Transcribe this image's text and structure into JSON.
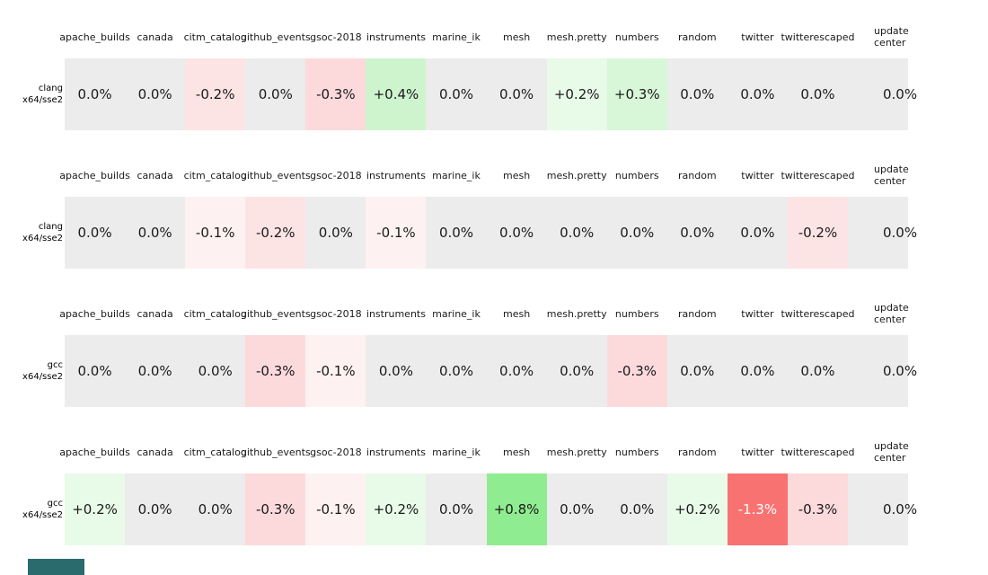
{
  "figure": {
    "columns": [
      "apache_builds",
      "canada",
      "citm_catalog",
      "github_events",
      "gsoc-2018",
      "instruments",
      "marine_ik",
      "mesh",
      "mesh.pretty",
      "numbers",
      "random",
      "twitter",
      "twitterescaped"
    ],
    "last_column_lines": [
      "update",
      "center"
    ],
    "groups": [
      {
        "label_lines": [
          "clang",
          "x64/sse2"
        ],
        "values": [
          "0.0%",
          "0.0%",
          "-0.2%",
          "0.0%",
          "-0.3%",
          "+0.4%",
          "0.0%",
          "0.0%",
          "+0.2%",
          "+0.3%",
          "0.0%",
          "0.0%",
          "0.0%",
          "0.0%"
        ]
      },
      {
        "label_lines": [
          "clang",
          "x64/sse2"
        ],
        "values": [
          "0.0%",
          "0.0%",
          "-0.1%",
          "-0.2%",
          "0.0%",
          "-0.1%",
          "0.0%",
          "0.0%",
          "0.0%",
          "0.0%",
          "0.0%",
          "0.0%",
          "-0.2%",
          "0.0%"
        ]
      },
      {
        "label_lines": [
          "gcc",
          "x64/sse2"
        ],
        "values": [
          "0.0%",
          "0.0%",
          "0.0%",
          "-0.3%",
          "-0.1%",
          "0.0%",
          "0.0%",
          "0.0%",
          "0.0%",
          "-0.3%",
          "0.0%",
          "0.0%",
          "0.0%",
          "0.0%"
        ]
      },
      {
        "label_lines": [
          "gcc",
          "x64/sse2"
        ],
        "values": [
          "+0.2%",
          "0.0%",
          "0.0%",
          "-0.3%",
          "-0.1%",
          "+0.2%",
          "0.0%",
          "+0.8%",
          "0.0%",
          "0.0%",
          "+0.2%",
          "-1.3%",
          "-0.3%",
          "0.0%"
        ]
      }
    ],
    "value_colors": {
      "0.0%": "#ececec",
      "-0.1%": "#fdf1f1",
      "-0.2%": "#fce4e5",
      "-0.3%": "#fcdadb",
      "-1.3%": "#f87272",
      "+0.2%": "#e8fae8",
      "+0.3%": "#d8f7d8",
      "+0.4%": "#cdf4cd",
      "+0.8%": "#90ec90"
    },
    "default_cell_color": "#ececec",
    "white_text_values": [
      "-1.3%"
    ],
    "text_color": "#1a1a1a",
    "accent_bar_color": "#2a6b6e"
  },
  "chart_data": {
    "type": "heatmap",
    "title": "",
    "columns": [
      "apache_builds",
      "canada",
      "citm_catalog",
      "github_events",
      "gsoc-2018",
      "instruments",
      "marine_ik",
      "mesh",
      "mesh.pretty",
      "numbers",
      "random",
      "twitter",
      "twitterescaped",
      "update-center"
    ],
    "rows": [
      {
        "label": "clang x64/sse2",
        "values_pct": [
          0.0,
          0.0,
          -0.2,
          0.0,
          -0.3,
          0.4,
          0.0,
          0.0,
          0.2,
          0.3,
          0.0,
          0.0,
          0.0,
          0.0
        ]
      },
      {
        "label": "clang x64/sse2",
        "values_pct": [
          0.0,
          0.0,
          -0.1,
          -0.2,
          0.0,
          -0.1,
          0.0,
          0.0,
          0.0,
          0.0,
          0.0,
          0.0,
          -0.2,
          0.0
        ]
      },
      {
        "label": "gcc x64/sse2",
        "values_pct": [
          0.0,
          0.0,
          0.0,
          -0.3,
          -0.1,
          0.0,
          0.0,
          0.0,
          0.0,
          -0.3,
          0.0,
          0.0,
          0.0,
          0.0
        ]
      },
      {
        "label": "gcc x64/sse2",
        "values_pct": [
          0.2,
          0.0,
          0.0,
          -0.3,
          -0.1,
          0.2,
          0.0,
          0.8,
          0.0,
          0.0,
          0.2,
          -1.3,
          -0.3,
          0.0
        ]
      }
    ],
    "legend_position": "none",
    "grid": false,
    "colormap": "negative=red shades, zero=light gray, positive=green shades"
  }
}
